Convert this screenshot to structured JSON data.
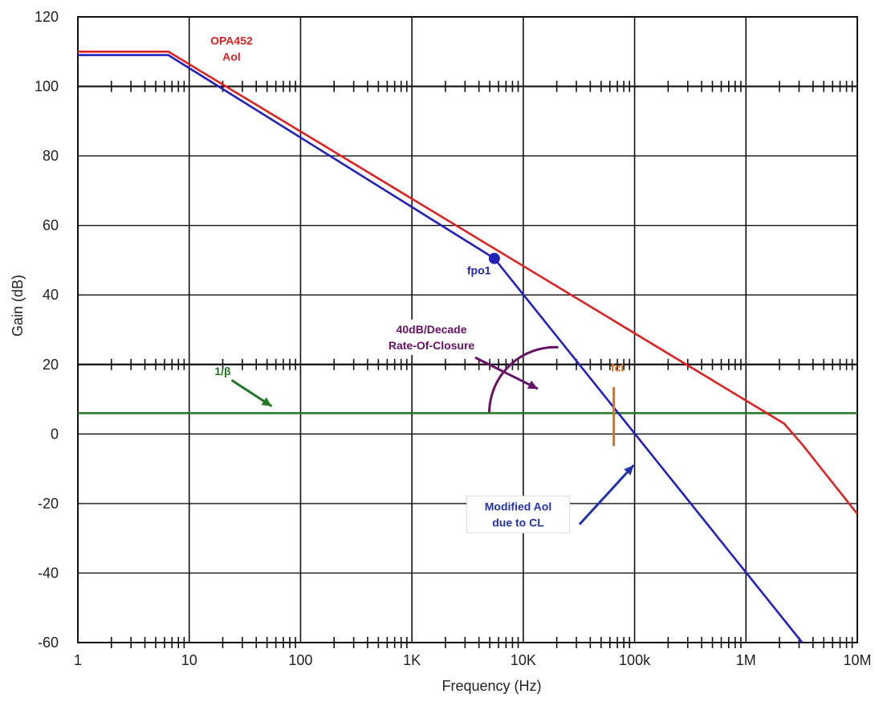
{
  "chart_data": {
    "type": "line",
    "xlabel": "Frequency (Hz)",
    "ylabel": "Gain (dB)",
    "x_scale": "log",
    "xlim": [
      1,
      10000000
    ],
    "ylim": [
      -60,
      120
    ],
    "x_ticks": [
      {
        "value": 1,
        "label": "1"
      },
      {
        "value": 10,
        "label": "10"
      },
      {
        "value": 100,
        "label": "100"
      },
      {
        "value": 1000,
        "label": "1K"
      },
      {
        "value": 10000,
        "label": "10K"
      },
      {
        "value": 100000,
        "label": "100k"
      },
      {
        "value": 1000000,
        "label": "1M"
      },
      {
        "value": 10000000,
        "label": "10M"
      }
    ],
    "y_ticks": [
      {
        "value": 120,
        "label": "120"
      },
      {
        "value": 100,
        "label": "100"
      },
      {
        "value": 80,
        "label": "80"
      },
      {
        "value": 60,
        "label": "60"
      },
      {
        "value": 40,
        "label": "40"
      },
      {
        "value": 20,
        "label": "20"
      },
      {
        "value": 0,
        "label": "0"
      },
      {
        "value": -20,
        "label": "-20"
      },
      {
        "value": -40,
        "label": "-40"
      },
      {
        "value": -60,
        "label": "-60"
      }
    ],
    "minor_tick_rows_y": [
      100,
      20,
      -60
    ],
    "grid": true,
    "series": [
      {
        "key": "aol",
        "color": "#dd2222",
        "x": [
          1,
          6.5,
          2200000,
          3200000,
          10000000
        ],
        "y": [
          110,
          110,
          3,
          -3,
          -23
        ]
      },
      {
        "key": "modified",
        "color": "#2222bb",
        "x": [
          1,
          6.5,
          5500,
          3200000
        ],
        "y": [
          109,
          109,
          50.5,
          -60
        ]
      },
      {
        "key": "beta",
        "color": "#227722",
        "x": [
          1,
          10000000
        ],
        "y": [
          6,
          6
        ]
      },
      {
        "key": "fcl",
        "color": "#e07020",
        "x": [
          65000,
          65000
        ],
        "y": [
          13.5,
          -3.5
        ]
      }
    ],
    "annotations": {
      "aol_label": {
        "lines": [
          "OPA452",
          "Aol"
        ],
        "color": "#dd2222",
        "x": 24,
        "y": 112
      },
      "fpo1_label": {
        "text": "fpo1",
        "color": "#2222bb",
        "x": 4000,
        "y": 46
      },
      "fpo1_point": {
        "x": 5500,
        "y": 50.5,
        "color": "#2222bb"
      },
      "closure_label": {
        "lines": [
          "40dB/Decade",
          "Rate-Of-Closure"
        ],
        "color": "#661166",
        "x": 1500,
        "y": 29
      },
      "beta_label": {
        "text": "1/β",
        "color": "#227722",
        "x": 20,
        "y": 17
      },
      "fcl_label": {
        "text": "fcl",
        "color": "#e07020",
        "x": 70000,
        "y": 18
      },
      "modified_label": {
        "lines": [
          "Modified Aol",
          "due to CL"
        ],
        "color": "#2233aa",
        "x": 9000,
        "y": -22
      }
    }
  }
}
